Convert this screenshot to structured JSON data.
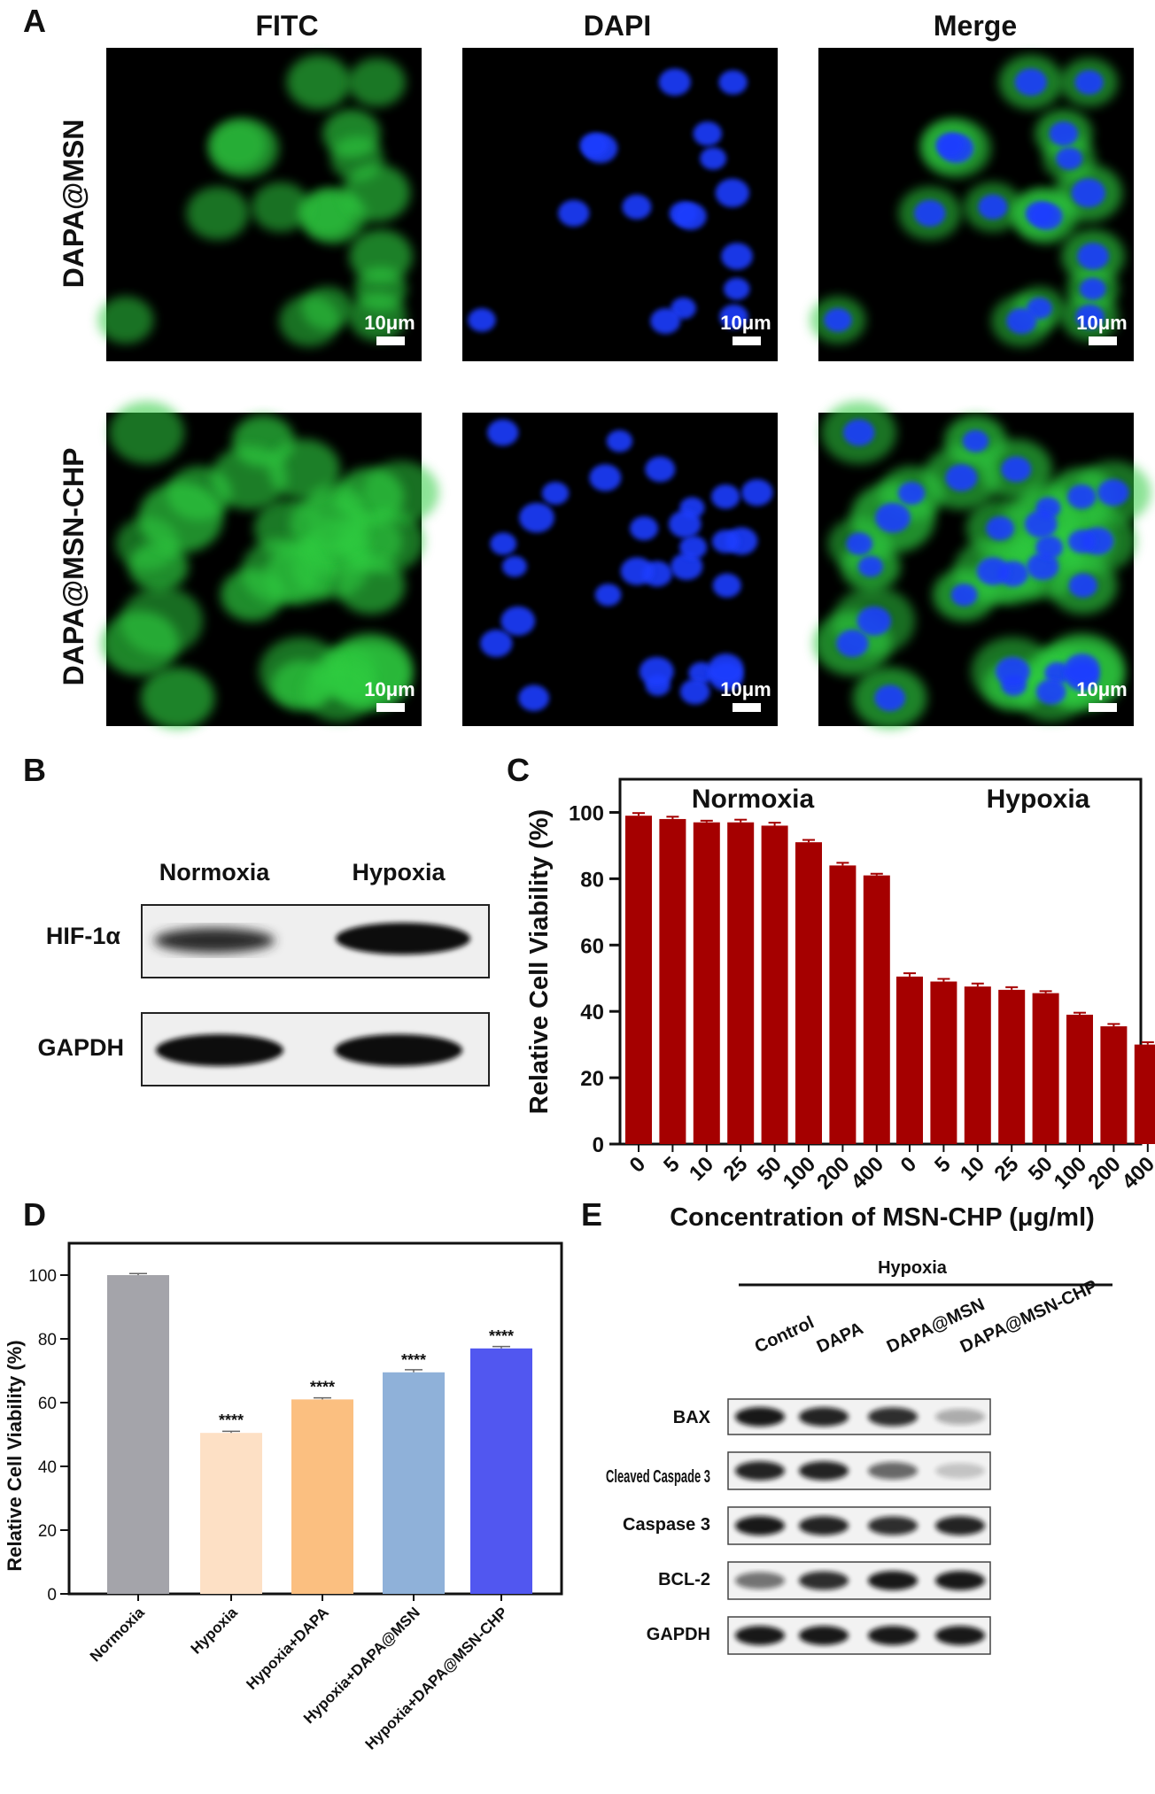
{
  "panel_labels": {
    "a": "A",
    "b": "B",
    "c": "C",
    "d": "D",
    "e": "E"
  },
  "panel_a": {
    "columns": [
      "FITC",
      "DAPI",
      "Merge"
    ],
    "rows": [
      "DAPA@MSN",
      "DAPA@MSN-CHP"
    ],
    "scale_bar": "10μm",
    "colors": {
      "fitc": "#2ecc40",
      "dapi": "#1e3cff",
      "background": "#000000"
    }
  },
  "panel_b": {
    "conditions": [
      "Normoxia",
      "Hypoxia"
    ],
    "proteins": [
      "HIF-1α",
      "GAPDH"
    ]
  },
  "panel_e": {
    "group_label": "Hypoxia",
    "lanes": [
      "Control",
      "DAPA",
      "DAPA@MSN",
      "DAPA@MSN-CHP"
    ],
    "proteins": [
      "BAX",
      "Cleaved Caspade 3",
      "Caspase 3",
      "BCL-2",
      "GAPDH"
    ]
  },
  "chart_data": [
    {
      "panel": "C",
      "type": "bar",
      "ylabel": "Relative Cell Viability (%)",
      "xlabel": "Concentration of MSN-CHP (μg/ml)",
      "ylim": [
        0,
        110
      ],
      "yticks": [
        0,
        20,
        40,
        60,
        80,
        100
      ],
      "color": "#a50000",
      "groups": [
        {
          "name": "Normoxia",
          "categories": [
            "0",
            "5",
            "10",
            "25",
            "50",
            "100",
            "200",
            "400"
          ],
          "values": [
            99,
            98,
            97,
            97,
            96,
            91,
            84,
            81
          ],
          "errors": [
            0.8,
            0.7,
            0.5,
            0.8,
            0.9,
            0.7,
            0.8,
            0.5
          ]
        },
        {
          "name": "Hypoxia",
          "categories": [
            "0",
            "5",
            "10",
            "25",
            "50",
            "100",
            "200",
            "400"
          ],
          "values": [
            50.5,
            49,
            47.5,
            46.5,
            45.5,
            39,
            35.5,
            30
          ],
          "errors": [
            1.0,
            0.8,
            0.9,
            0.8,
            0.6,
            0.6,
            0.7,
            0.7
          ]
        }
      ]
    },
    {
      "panel": "D",
      "type": "bar",
      "ylabel": "Relative Cell Viability (%)",
      "ylim": [
        0,
        110
      ],
      "yticks": [
        0,
        20,
        40,
        60,
        80,
        100
      ],
      "categories": [
        "Normoxia",
        "Hypoxia",
        "Hypoxia+DAPA",
        "Hypoxia+DAPA@MSN",
        "Hypoxia+DAPA@MSN-CHP"
      ],
      "values": [
        100,
        50.5,
        61,
        69.5,
        77
      ],
      "errors": [
        0.5,
        0.5,
        0.5,
        0.8,
        0.6
      ],
      "annotations": [
        "",
        "****",
        "****",
        "****",
        "****"
      ],
      "colors": [
        "#a4a4aa",
        "#fde0c5",
        "#fbbf80",
        "#8fb1d9",
        "#5157f0"
      ]
    }
  ]
}
